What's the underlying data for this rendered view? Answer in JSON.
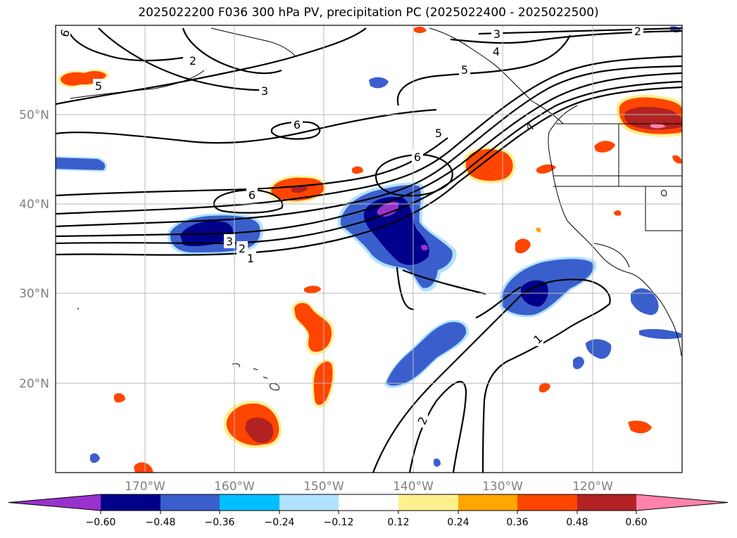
{
  "title": "2025022200 F036 300 hPa PV, precipitation PC (2025022400 - 2025022500)",
  "gridlines": {
    "lon_labels": [
      "170°W",
      "160°W",
      "150°W",
      "140°W",
      "130°W",
      "120°W"
    ],
    "lat_labels": [
      "50°N",
      "40°N",
      "30°N",
      "20°N"
    ]
  },
  "contour_labels": [
    "6",
    "2",
    "5",
    "3",
    "6",
    "5",
    "6",
    "6",
    "3",
    "2",
    "1",
    "3",
    "4",
    "5",
    "2",
    "4",
    "1",
    "2"
  ],
  "colorbar": {
    "ticks": [
      "−0.60",
      "−0.48",
      "−0.36",
      "−0.24",
      "−0.12",
      "0.12",
      "0.24",
      "0.36",
      "0.48",
      "0.60"
    ],
    "colors": [
      "#9932cc",
      "#00008b",
      "#3a5fcd",
      "#00bfff",
      "#b0e2ff",
      "#ffffff",
      "#fff08f",
      "#ffa500",
      "#ff4500",
      "#b22222",
      "#ff82ab"
    ]
  },
  "colors": {
    "neg_dark": "#00008b",
    "neg_mid": "#3a5fcd",
    "neg_light": "#00bfff",
    "neg_pale": "#b0e2ff",
    "neg_extreme": "#9932cc",
    "pos_pale": "#fff08f",
    "pos_light": "#ffa500",
    "pos_mid": "#ff4500",
    "pos_dark": "#b22222",
    "pos_extreme": "#ff82ab"
  }
}
